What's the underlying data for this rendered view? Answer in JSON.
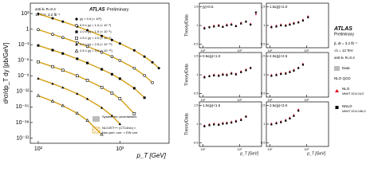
{
  "chart_data": [
    {
      "type": "scatter",
      "xlog": true,
      "ylog": true,
      "xlabel": "p_T [GeV]",
      "ylabel": "d²σ/dp_T dy [pb/GeV]",
      "xlim": [
        80,
        4000
      ],
      "ylim": [
        1e-22,
        100000
      ],
      "xticks": [
        {
          "value": 100,
          "label": "10²"
        },
        {
          "value": 1000,
          "label": "10³"
        }
      ],
      "yticks": [
        {
          "value": 1e-21,
          "label": "10⁻²¹"
        },
        {
          "value": 1e-18,
          "label": "10⁻¹⁸"
        },
        {
          "value": 1e-15,
          "label": "10⁻¹⁵"
        },
        {
          "value": 1e-12,
          "label": "10⁻¹²"
        },
        {
          "value": 1e-09,
          "label": "10⁻⁹"
        },
        {
          "value": 1e-06,
          "label": "10⁻⁶"
        },
        {
          "value": 0.001,
          "label": "10⁻³"
        },
        {
          "value": 1,
          "label": "1"
        },
        {
          "value": 1000,
          "label": "10³"
        }
      ],
      "notes": [
        "anti-kₜ R=0.4",
        "13 TeV, 3.2 fb⁻¹"
      ],
      "brand": "ATLAS",
      "brand_note": "Preliminary",
      "band_legend": [
        "Systematic uncertainties",
        "NLOJET++ (CT14nlo) ×",
        "Non-pert. corr. × EW corr."
      ],
      "theory_color": "#d4a017",
      "series": [
        {
          "name": "|y| < 0.5 (× 10⁰)",
          "marker": "circle",
          "color": "#000000",
          "x": [
            100,
            150,
            200,
            300,
            400,
            600,
            800,
            1000,
            1500,
            2000,
            2500,
            3000
          ],
          "values": [
            900,
            120,
            28,
            3.2,
            0.6,
            0.05,
            0.008,
            0.0017,
            8e-05,
            5e-06,
            4e-07,
            3e-08
          ]
        },
        {
          "name": "0.5 ≤ |y| < 1.0 (× 10⁻³)",
          "marker": "circle-open",
          "color": "#000000",
          "x": [
            100,
            150,
            200,
            300,
            400,
            600,
            800,
            1000,
            1500,
            2000,
            2500
          ],
          "values": [
            0.8,
            0.1,
            0.024,
            0.0026,
            0.00045,
            3.5e-05,
            5e-06,
            9e-07,
            3e-08,
            1.2e-09,
            5e-11
          ]
        },
        {
          "name": "1.0 ≤ |y| < 1.5 (× 10⁻⁶)",
          "marker": "square",
          "color": "#000000",
          "x": [
            100,
            150,
            200,
            300,
            400,
            600,
            800,
            1000,
            1500,
            2000
          ],
          "values": [
            0.0007,
            9e-05,
            2e-05,
            1.9e-06,
            3e-07,
            1.8e-08,
            2e-09,
            2.8e-10,
            4e-12,
            6e-14
          ]
        },
        {
          "name": "1.5 ≤ |y| < 2.0 (× 10⁻⁹)",
          "marker": "square-open",
          "color": "#000000",
          "x": [
            100,
            150,
            200,
            300,
            400,
            600,
            800,
            1000,
            1500
          ],
          "values": [
            5e-07,
            6e-08,
            1.2e-08,
            1e-09,
            1.4e-10,
            6e-12,
            4.5e-13,
            4e-14,
            5e-17
          ]
        },
        {
          "name": "2.0 ≤ |y| < 2.5 (× 10⁻¹²)",
          "marker": "triangle",
          "color": "#000000",
          "x": [
            100,
            150,
            200,
            300,
            400,
            600,
            800,
            1000
          ],
          "values": [
            3e-10,
            3e-11,
            5.5e-12,
            3.5e-13,
            3.5e-14,
            7e-16,
            2e-17,
            5e-19
          ]
        },
        {
          "name": "2.5 ≤ |y| < 3.0 (× 10⁻¹⁵)",
          "marker": "triangle-open",
          "color": "#000000",
          "x": [
            100,
            150,
            200,
            300,
            400,
            600
          ],
          "values": [
            1.5e-13,
            1.3e-14,
            1.8e-15,
            6e-17,
            2.5e-18,
            5e-21
          ]
        }
      ]
    },
    {
      "type": "scatter",
      "xlog": true,
      "title": "|y|<0.5",
      "ylabel": "Theory/Data",
      "xlim": [
        80,
        4000
      ],
      "ylim": [
        0.4,
        1.6
      ],
      "yticks": [
        0.5,
        1,
        1.5
      ],
      "xticks": [
        {
          "value": 100,
          "label": "10²"
        },
        {
          "value": 1000,
          "label": "10³"
        }
      ],
      "x": [
        110,
        150,
        200,
        270,
        350,
        450,
        600,
        800,
        1100,
        1500,
        2000,
        2800
      ],
      "series": [
        {
          "name": "NLO",
          "marker": "triangle",
          "color": "#e0001b",
          "values": [
            0.95,
            0.97,
            1.0,
            1.02,
            0.98,
            1.03,
            1.05,
            1.0,
            1.08,
            1.12,
            1.05,
            1.3
          ]
        },
        {
          "name": "NNLO",
          "marker": "square",
          "color": "#000000",
          "values": [
            0.92,
            0.95,
            0.97,
            0.99,
            0.96,
            1.0,
            1.02,
            0.98,
            1.05,
            1.1,
            1.02,
            1.35
          ]
        }
      ]
    },
    {
      "type": "scatter",
      "xlog": true,
      "title": "0.5≤|y|<1.0",
      "ylabel": "Theory/Data",
      "xlim": [
        80,
        4000
      ],
      "ylim": [
        0.4,
        1.6
      ],
      "yticks": [
        0.5,
        1,
        1.5
      ],
      "xticks": [
        {
          "value": 100,
          "label": "10²"
        },
        {
          "value": 1000,
          "label": "10³"
        }
      ],
      "x": [
        110,
        150,
        200,
        270,
        350,
        450,
        600,
        800,
        1100,
        1500,
        2000
      ],
      "series": [
        {
          "name": "NLO",
          "marker": "triangle",
          "color": "#e0001b",
          "values": [
            0.96,
            0.98,
            1.01,
            1.0,
            1.03,
            1.02,
            1.06,
            1.04,
            1.1,
            1.15,
            1.2
          ]
        },
        {
          "name": "NNLO",
          "marker": "square",
          "color": "#000000",
          "values": [
            0.93,
            0.96,
            0.98,
            0.97,
            1.0,
            0.99,
            1.03,
            1.01,
            1.07,
            1.12,
            1.18
          ]
        }
      ]
    },
    {
      "type": "scatter",
      "xlog": true,
      "title": "1.0≤|y|<1.5",
      "ylabel": "Theory/Data",
      "xlabel": "p_T [GeV]",
      "xlim": [
        80,
        4000
      ],
      "ylim": [
        0.4,
        1.6
      ],
      "yticks": [
        0.5,
        1,
        1.5
      ],
      "xticks": [
        {
          "value": 100,
          "label": "10²"
        },
        {
          "value": 1000,
          "label": "10³"
        }
      ],
      "x": [
        110,
        150,
        200,
        270,
        350,
        450,
        600,
        800,
        1100,
        1500
      ],
      "series": [
        {
          "name": "NLO",
          "marker": "triangle",
          "color": "#e0001b",
          "values": [
            0.97,
            1.0,
            1.02,
            1.01,
            1.04,
            1.05,
            1.07,
            1.1,
            1.14,
            1.22
          ]
        },
        {
          "name": "NNLO",
          "marker": "square",
          "color": "#000000",
          "values": [
            0.94,
            0.97,
            0.99,
            0.98,
            1.01,
            1.02,
            1.04,
            1.07,
            1.11,
            1.2
          ]
        }
      ]
    },
    {
      "type": "scatter",
      "xlog": true,
      "title": "1.5≤|y|<2.0",
      "xlim": [
        80,
        4000
      ],
      "ylim": [
        0.4,
        1.6
      ],
      "yticks": [
        0.5,
        1,
        1.5
      ],
      "xticks": [
        {
          "value": 100,
          "label": "10²"
        },
        {
          "value": 1000,
          "label": "10³"
        }
      ],
      "x": [
        110,
        150,
        200,
        270,
        350,
        450,
        600,
        800,
        1100
      ],
      "series": [
        {
          "name": "NLO",
          "marker": "triangle",
          "color": "#e0001b",
          "values": [
            0.98,
            1.0,
            1.03,
            1.02,
            1.05,
            1.08,
            1.1,
            1.16,
            1.25
          ]
        },
        {
          "name": "NNLO",
          "marker": "square",
          "color": "#000000",
          "values": [
            0.95,
            0.97,
            1.0,
            0.99,
            1.02,
            1.05,
            1.08,
            1.13,
            1.22
          ]
        }
      ]
    },
    {
      "type": "scatter",
      "xlog": true,
      "title": "2.0≤|y|<2.5",
      "xlim": [
        80,
        4000
      ],
      "ylim": [
        0.4,
        1.6
      ],
      "yticks": [
        0.5,
        1,
        1.5
      ],
      "xticks": [
        {
          "value": 100,
          "label": "10²"
        },
        {
          "value": 1000,
          "label": "10³"
        }
      ],
      "x": [
        110,
        150,
        200,
        270,
        350,
        450,
        600,
        800
      ],
      "series": [
        {
          "name": "NLO",
          "marker": "triangle",
          "color": "#e0001b",
          "values": [
            1.0,
            1.02,
            1.05,
            1.06,
            1.1,
            1.14,
            1.2,
            1.3
          ]
        },
        {
          "name": "NNLO",
          "marker": "square",
          "color": "#000000",
          "values": [
            0.97,
            0.99,
            1.02,
            1.03,
            1.07,
            1.11,
            1.18,
            1.27
          ]
        }
      ]
    },
    {
      "type": "scatter",
      "xlog": true,
      "title": "2.5≤|y|<3.0",
      "xlabel": "p_T [GeV]",
      "xlim": [
        80,
        4000
      ],
      "ylim": [
        0.4,
        1.6
      ],
      "yticks": [
        0.5,
        1,
        1.5
      ],
      "xticks": [
        {
          "value": 100,
          "label": "10²"
        },
        {
          "value": 1000,
          "label": "10³"
        }
      ],
      "x": [
        110,
        150,
        200,
        270,
        350,
        450,
        600
      ],
      "series": [
        {
          "name": "NLO",
          "marker": "triangle",
          "color": "#e0001b",
          "values": [
            1.02,
            1.05,
            1.08,
            1.12,
            1.18,
            1.25,
            1.4
          ]
        },
        {
          "name": "NNLO",
          "marker": "square",
          "color": "#000000",
          "values": [
            0.99,
            1.02,
            1.05,
            1.09,
            1.15,
            1.22,
            1.36
          ]
        }
      ]
    }
  ],
  "legend": {
    "brand": "ATLAS",
    "brand_note": "Preliminary",
    "lumi": "∫L dt = 3.2 fb⁻¹",
    "energy": "√s = 13 TeV",
    "algo": "anti-kₜ R=0.4",
    "data": "Data",
    "theory": "NLO QCD",
    "nlo": "NLO",
    "nlo_pdf": "MMHT 2014 NLO",
    "nnlo": "NNLO",
    "nnlo_pdf": "MMHT 2014 NNLO"
  }
}
